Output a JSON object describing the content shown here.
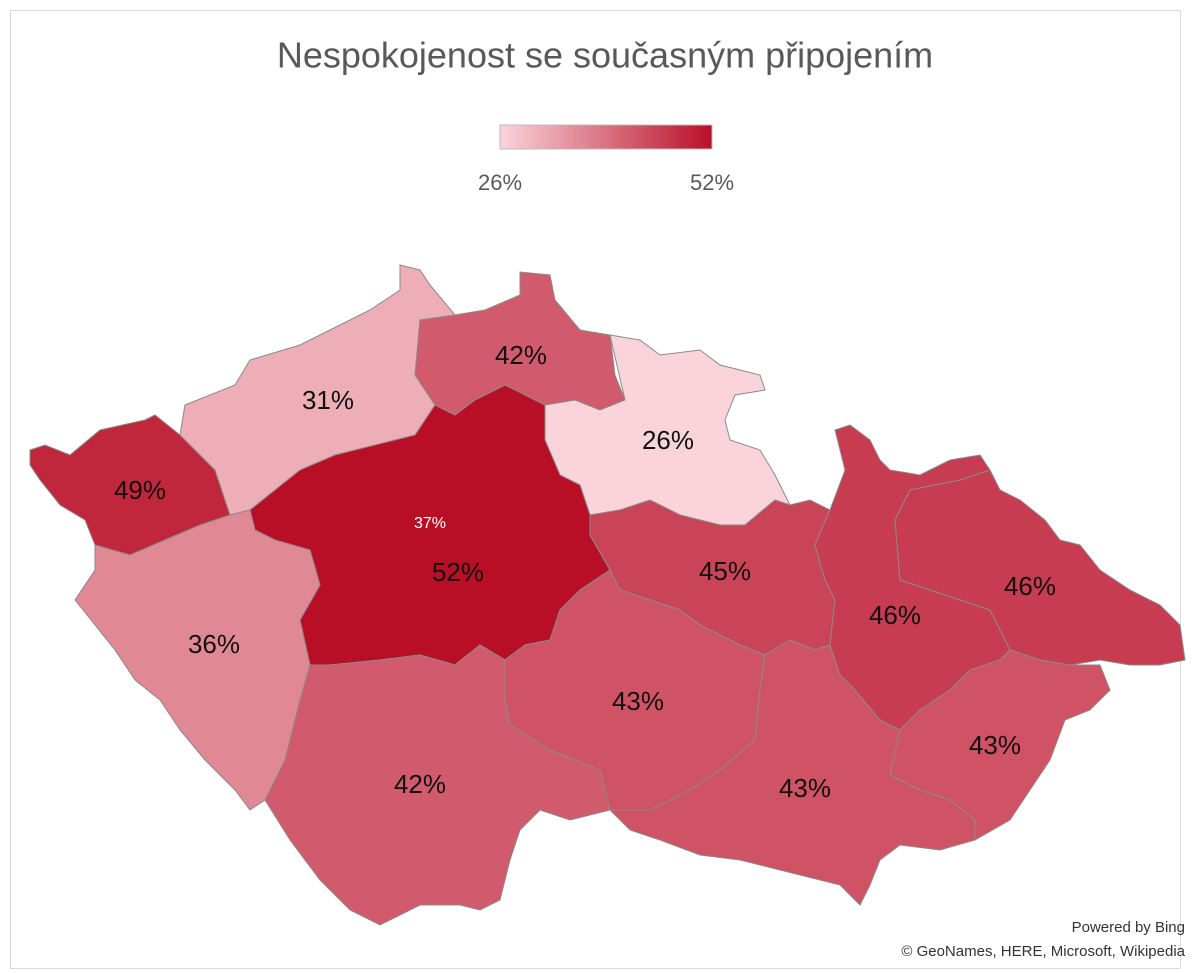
{
  "chart_data": {
    "type": "choropleth",
    "title": "Nespokojenost se současným připojením",
    "values": [
      49,
      31,
      42,
      26,
      37,
      52,
      36,
      42,
      45,
      43,
      43,
      46,
      46,
      43
    ],
    "value_labels": [
      "49%",
      "31%",
      "42%",
      "26%",
      "37%",
      "52%",
      "36%",
      "42%",
      "45%",
      "43%",
      "43%",
      "46%",
      "46%",
      "43%"
    ],
    "colorscale": {
      "min": {
        "value": 26,
        "label": "26%"
      },
      "max": {
        "value": 52,
        "label": "52%"
      },
      "colors": [
        "#fad4da",
        "#b80f27"
      ]
    },
    "attribution": [
      "Powered by Bing",
      "© GeoNames, HERE, Microsoft, Wikipedia"
    ]
  }
}
